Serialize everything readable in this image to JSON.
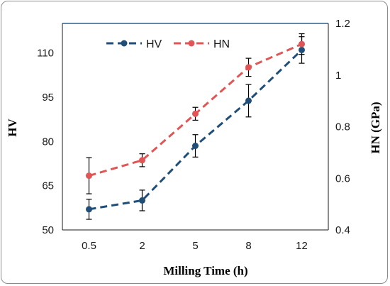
{
  "chart_data": {
    "type": "line",
    "categories": [
      "0.5",
      "2",
      "5",
      "8",
      "12"
    ],
    "xlabel": "Milling Time (h)",
    "ylabel": "HV",
    "y2label": "HN (GPa)",
    "ylim": [
      50,
      120
    ],
    "y2lim": [
      0.4,
      1.2
    ],
    "yticks": [
      50,
      65,
      80,
      95,
      110
    ],
    "y2ticks": [
      "0.4",
      "0.6",
      "0.8",
      "1",
      "1.2"
    ],
    "legend_position": "top-center",
    "series": [
      {
        "name": "HV",
        "axis": "left",
        "color": "#1f4e79",
        "values": [
          57.0,
          60.0,
          78.5,
          93.8,
          111.0
        ],
        "errors": [
          3.4,
          3.5,
          3.8,
          5.5,
          4.5
        ]
      },
      {
        "name": "HN",
        "axis": "right",
        "color": "#e05555",
        "values": [
          0.61,
          0.67,
          0.85,
          1.03,
          1.12
        ],
        "errors": [
          0.07,
          0.025,
          0.025,
          0.035,
          0.04
        ]
      }
    ]
  }
}
